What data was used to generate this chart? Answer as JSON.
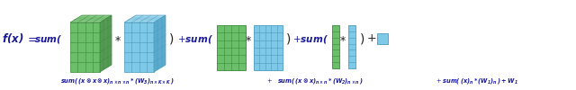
{
  "fig_width": 6.4,
  "fig_height": 1.0,
  "dpi": 100,
  "bg_color": "#ffffff",
  "green_face": "#6BBF6B",
  "green_edge": "#3A8A3A",
  "green_top": "#88CC88",
  "green_side": "#559955",
  "blue_face": "#7EC8E8",
  "blue_edge": "#4A9BBF",
  "blue_top": "#A0D8F0",
  "blue_side": "#5AAACE",
  "text_color": "#1a1a9c",
  "dark_color": "#222222"
}
